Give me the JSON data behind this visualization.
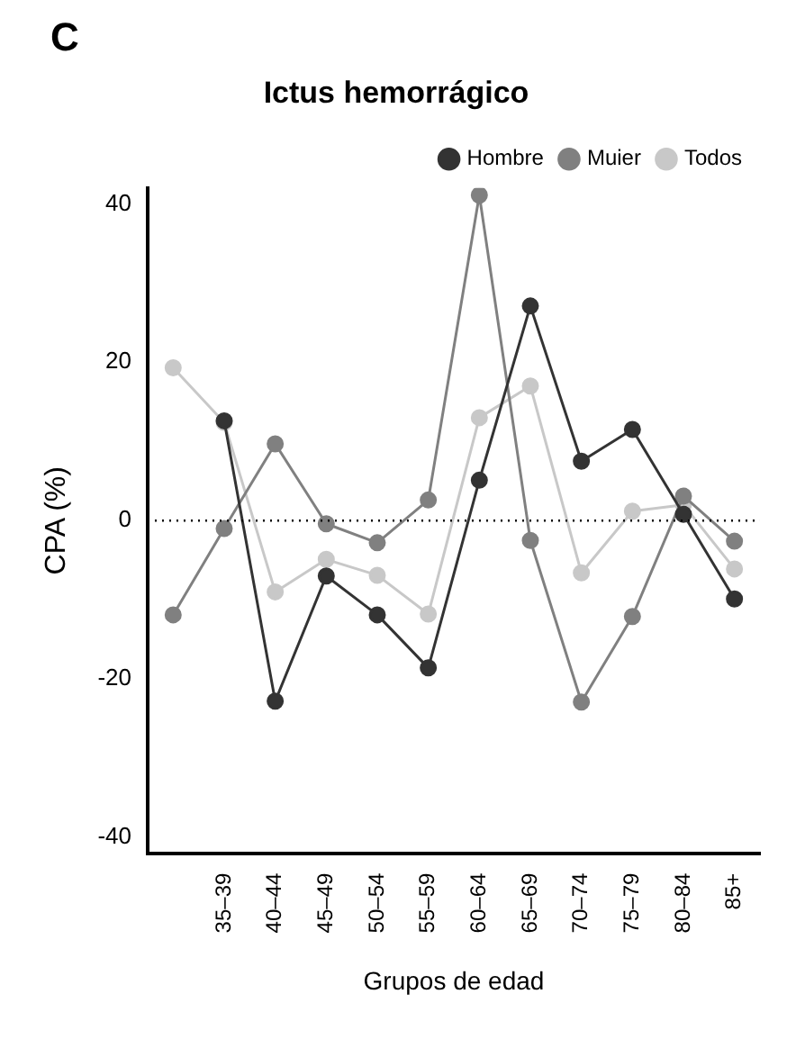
{
  "chart_data": {
    "type": "line",
    "title": "Ictus hemorrágico",
    "xlabel": "Grupos de edad",
    "ylabel": "CPA (%)",
    "annotations": [
      "C"
    ],
    "categories": [
      null,
      "35–39",
      "40–44",
      "45–49",
      "50–54",
      "55–59",
      "60–64",
      "65–69",
      "70–74",
      "75–79",
      "80–84",
      "85+"
    ],
    "series": [
      {
        "name": "Hombre",
        "color": "#333333",
        "values": [
          null,
          12.6,
          -22.8,
          -7.0,
          -11.9,
          -18.6,
          5.1,
          27.1,
          7.5,
          11.5,
          0.8,
          -9.9
        ]
      },
      {
        "name": "Muier",
        "color": "#808080",
        "values": [
          -11.9,
          -1.0,
          9.7,
          -0.4,
          -2.8,
          2.6,
          41.1,
          -2.5,
          -22.9,
          -12.1,
          3.1,
          -2.6
        ]
      },
      {
        "name": "Todos",
        "color": "#c8c8c8",
        "values": [
          19.3,
          12.4,
          -9.0,
          -4.9,
          -6.9,
          -11.8,
          13.0,
          17.0,
          -6.6,
          1.2,
          2.0,
          -6.1
        ]
      }
    ],
    "ylim": [
      -42,
      42
    ],
    "yticks": [
      -40,
      -20,
      0,
      20,
      40
    ],
    "grid": false,
    "legend": "top right",
    "marker": "circle",
    "ref_lines": [
      {
        "axis": "y",
        "value": 0,
        "line_style": "dotted",
        "color": "#000000"
      }
    ]
  }
}
